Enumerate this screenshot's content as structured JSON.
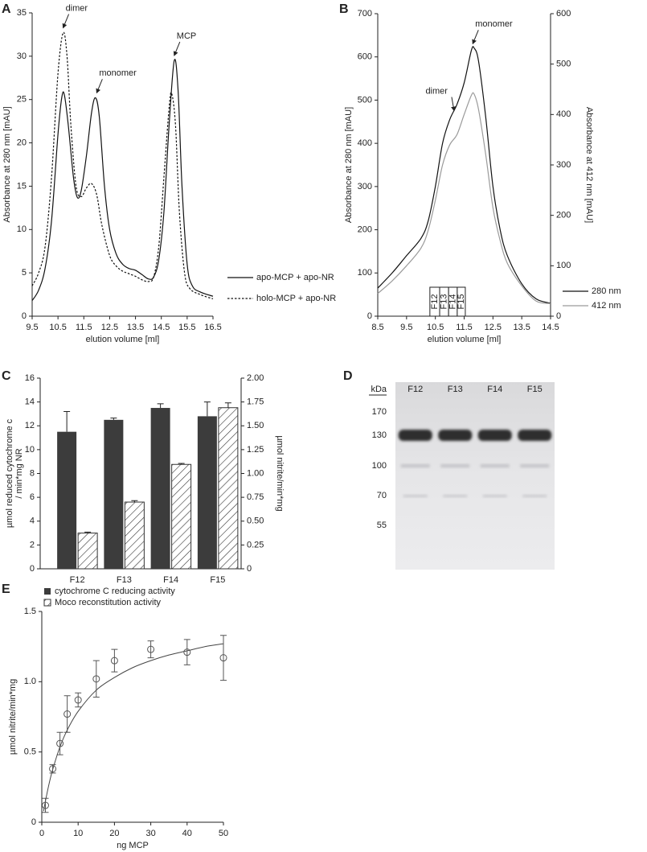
{
  "chart_data": [
    {
      "type": "line",
      "panel": "A",
      "xlabel": "elution volume [ml]",
      "ylabel": "Absorbance at 280 nm [mAU]",
      "xlim": [
        9.5,
        16.5
      ],
      "xticks": [
        9.5,
        10.5,
        11.5,
        12.5,
        13.5,
        14.5,
        15.5,
        16.5
      ],
      "ylim": [
        0,
        35
      ],
      "yticks": [
        0,
        5,
        10,
        15,
        20,
        25,
        30,
        35
      ],
      "series": [
        {
          "name": "apo-MCP + apo-NR",
          "color": "#111111",
          "dashed": false,
          "x": [
            9.5,
            9.75,
            10.0,
            10.25,
            10.5,
            10.65,
            10.75,
            10.9,
            11.1,
            11.25,
            11.4,
            11.6,
            11.8,
            11.95,
            12.1,
            12.3,
            12.5,
            12.75,
            13.0,
            13.25,
            13.5,
            13.75,
            14.0,
            14.2,
            14.4,
            14.6,
            14.8,
            15.0,
            15.15,
            15.3,
            15.5,
            15.7,
            16.0,
            16.5
          ],
          "values": [
            1.8,
            3.0,
            5.5,
            11,
            21,
            25.3,
            25.5,
            22,
            16,
            13.7,
            14.5,
            18.5,
            23.5,
            25.2,
            23,
            15,
            10,
            7.2,
            6,
            5.5,
            5.3,
            4.8,
            4.3,
            4.5,
            6.5,
            12,
            22,
            29.5,
            26,
            15,
            6,
            3.5,
            2.8,
            2.3
          ]
        },
        {
          "name": "holo-MCP + apo-NR",
          "color": "#111111",
          "dashed": true,
          "x": [
            9.5,
            9.75,
            10.0,
            10.25,
            10.5,
            10.7,
            10.85,
            11.0,
            11.2,
            11.4,
            11.6,
            11.8,
            12.0,
            12.2,
            12.5,
            12.75,
            13.0,
            13.25,
            13.5,
            13.75,
            14.0,
            14.2,
            14.4,
            14.6,
            14.8,
            14.9,
            15.05,
            15.2,
            15.4,
            15.6,
            16.0,
            16.5
          ],
          "values": [
            3.5,
            5,
            8,
            16,
            28,
            32.7,
            30,
            22,
            15,
            13.8,
            14.8,
            15.3,
            14,
            10.5,
            7,
            5.8,
            5.2,
            4.9,
            4.6,
            4.2,
            4,
            4.5,
            8,
            16,
            24,
            25.7,
            22,
            12,
            5,
            3.2,
            2.5,
            2.0
          ]
        }
      ],
      "annotations": [
        {
          "text": "dimer",
          "x": 10.7,
          "y": 33
        },
        {
          "text": "monomer",
          "x": 12.0,
          "y": 25.5
        },
        {
          "text": "MCP",
          "x": 15.0,
          "y": 29.8
        }
      ]
    },
    {
      "type": "line",
      "panel": "B",
      "xlabel": "elution volume [ml]",
      "ylabel": "Absorbance at 280 nm [mAU]",
      "y2label": "Absorbance at 412 nm [mAU]",
      "xlim": [
        8.5,
        14.5
      ],
      "xticks": [
        8.5,
        9.5,
        10.5,
        11.5,
        12.5,
        13.5,
        14.5
      ],
      "ylim": [
        0,
        700
      ],
      "yticks": [
        0,
        100,
        200,
        300,
        400,
        500,
        600,
        700
      ],
      "y2lim": [
        0,
        600
      ],
      "y2ticks": [
        0,
        100,
        200,
        300,
        400,
        500,
        600
      ],
      "series": [
        {
          "name": "280 nm",
          "color": "#111111",
          "dashed": false,
          "x": [
            8.5,
            9.0,
            9.5,
            10.0,
            10.25,
            10.5,
            10.75,
            11.0,
            11.25,
            11.5,
            11.75,
            11.85,
            12.0,
            12.25,
            12.5,
            12.75,
            13.0,
            13.5,
            14.0,
            14.5
          ],
          "values": [
            65,
            100,
            140,
            180,
            220,
            300,
            400,
            455,
            490,
            540,
            615,
            620,
            590,
            460,
            300,
            200,
            140,
            75,
            40,
            30
          ]
        },
        {
          "name": "412 nm",
          "color": "#9a9a9a",
          "dashed": false,
          "axis": "y2",
          "x": [
            8.5,
            9.0,
            9.5,
            10.0,
            10.25,
            10.5,
            10.75,
            11.0,
            11.25,
            11.5,
            11.75,
            11.85,
            12.0,
            12.25,
            12.5,
            12.75,
            13.0,
            13.5,
            14.0,
            14.5
          ],
          "values": [
            45,
            70,
            100,
            135,
            170,
            230,
            300,
            340,
            360,
            400,
            438,
            440,
            410,
            320,
            215,
            150,
            105,
            60,
            30,
            25
          ]
        }
      ],
      "annotations": [
        {
          "text": "dimer",
          "x": 11.15,
          "y": 470
        },
        {
          "text": "monomer",
          "x": 11.8,
          "y": 625
        }
      ],
      "fractions": [
        {
          "label": "F12",
          "start": 10.31,
          "end": 10.65
        },
        {
          "label": "F13",
          "start": 10.65,
          "end": 10.96
        },
        {
          "label": "F14",
          "start": 10.96,
          "end": 11.26
        },
        {
          "label": "F15",
          "start": 11.26,
          "end": 11.54
        }
      ]
    },
    {
      "type": "bar",
      "panel": "C",
      "ylabel": [
        "µmol reduced cytochrome c",
        "/ min*mg NR"
      ],
      "y2label": "µmol nitrite/min*mg",
      "categories": [
        "F12",
        "F13",
        "F14",
        "F15"
      ],
      "ylim": [
        0,
        16
      ],
      "yticks": [
        0,
        2,
        4,
        6,
        8,
        10,
        12,
        14,
        16
      ],
      "y2lim": [
        0,
        2
      ],
      "y2ticks": [
        0,
        0.25,
        {
          "value": 0.5,
          "label": "0.50"
        },
        0.75,
        {
          "value": 1,
          "label": "1.00"
        },
        1.25,
        {
          "value": 1.5,
          "label": "1.50"
        },
        1.75,
        {
          "value": 2,
          "label": "2.00"
        }
      ],
      "series": [
        {
          "name": "cytochrome C reducing activity",
          "color": "#3c3c3c",
          "values": [
            11.5,
            12.5,
            13.5,
            12.8
          ],
          "errors": [
            1.7,
            0.15,
            0.35,
            1.2
          ]
        },
        {
          "name": "Moco reconstitution activity",
          "color": "#333333",
          "hatched": true,
          "axis": "y2",
          "values": [
            0.375,
            0.7,
            1.095,
            1.69
          ],
          "errors": [
            0.01,
            0.015,
            0.01,
            0.05
          ]
        }
      ]
    },
    {
      "type": "gel",
      "panel": "D",
      "unit_label": "kDa",
      "lanes": [
        "F12",
        "F13",
        "F14",
        "F15"
      ],
      "markers": [
        170,
        130,
        100,
        70,
        55
      ]
    },
    {
      "type": "scatter",
      "panel": "E",
      "xlabel": "ng MCP",
      "ylabel": "µmol nitrite/min*mg",
      "xlim": [
        0,
        50
      ],
      "xticks": [
        0,
        10,
        20,
        30,
        40,
        50
      ],
      "ylim": [
        0,
        1.5
      ],
      "yticks": [
        0,
        0.5,
        {
          "value": 1,
          "label": "1.0"
        },
        1.5
      ],
      "x": [
        1,
        3,
        5,
        7,
        10,
        15,
        20,
        30,
        40,
        50
      ],
      "values": [
        0.12,
        0.38,
        0.56,
        0.77,
        0.87,
        1.02,
        1.15,
        1.23,
        1.21,
        1.17
      ],
      "errors": [
        0.05,
        0.03,
        0.08,
        0.13,
        0.05,
        0.13,
        0.08,
        0.06,
        0.09,
        0.16
      ],
      "color": "#555555",
      "fit": {
        "x": [
          0.5,
          1,
          2,
          3,
          5,
          7,
          10,
          15,
          20,
          25,
          30,
          35,
          40,
          45,
          50
        ],
        "values": [
          0.079,
          0.15,
          0.273,
          0.375,
          0.536,
          0.656,
          0.789,
          0.94,
          1.03,
          1.1,
          1.15,
          1.19,
          1.22,
          1.25,
          1.27
        ]
      }
    }
  ]
}
